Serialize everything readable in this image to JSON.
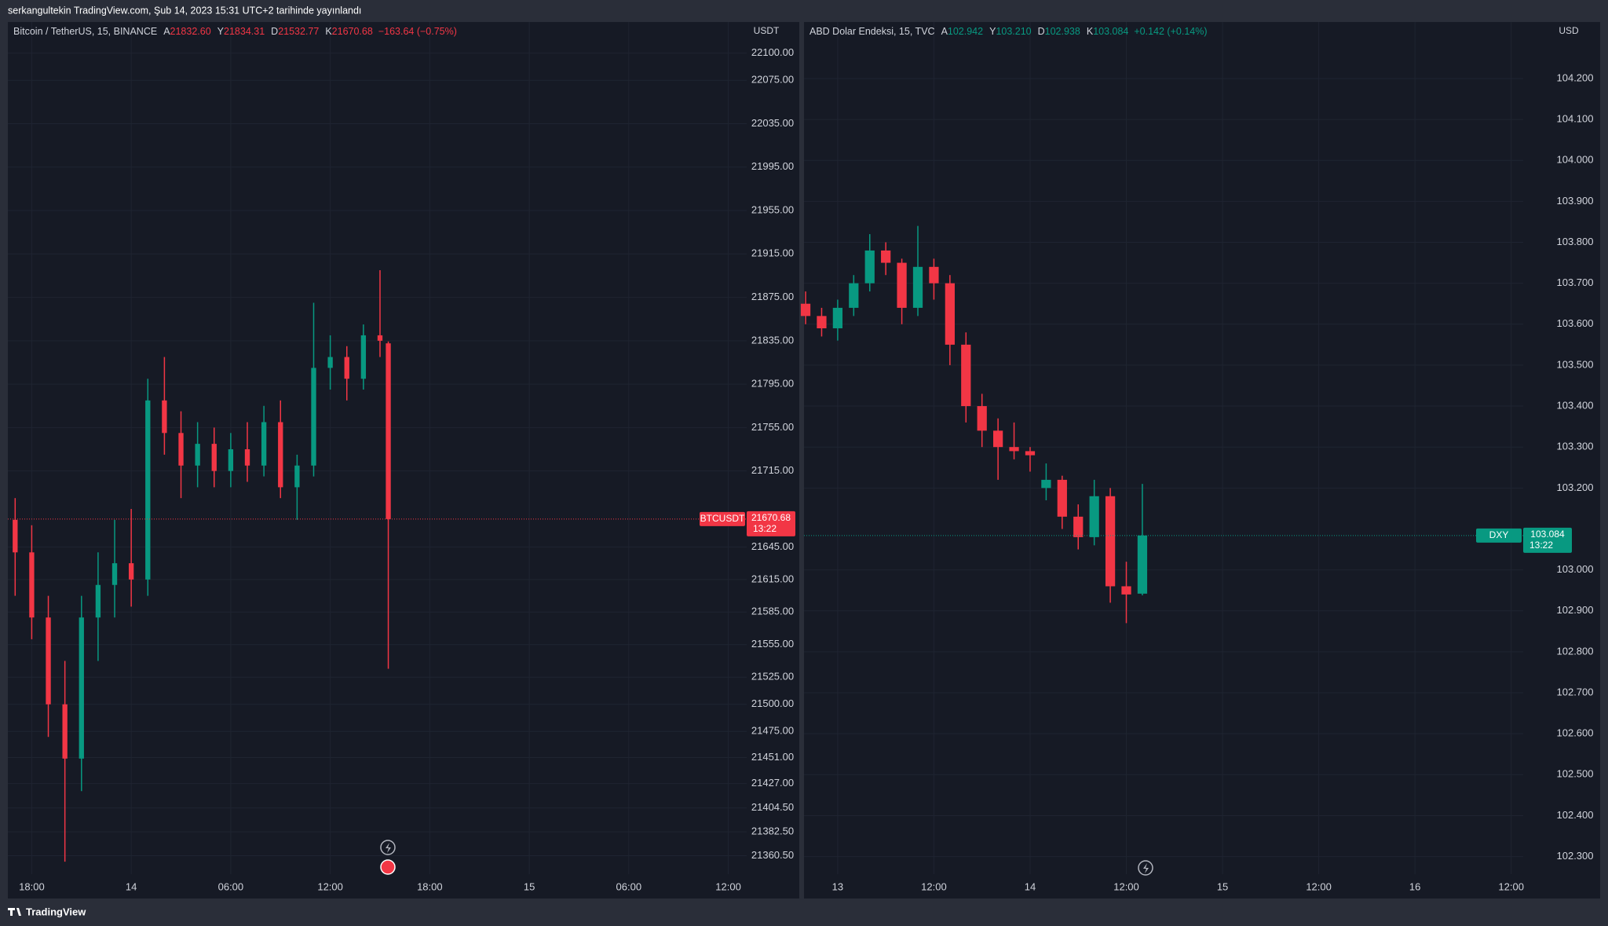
{
  "header": {
    "text": "serkangultekin TradingView.com, Şub 14, 2023 15:31 UTC+2 tarihinde yayınlandı"
  },
  "footer": {
    "brand": "TradingView"
  },
  "chart_data": [
    {
      "type": "candlestick",
      "title": "Bitcoin / TetherUS, 15, BINANCE",
      "ohlc_header": [
        {
          "key": "A",
          "value": "21832.60"
        },
        {
          "key": "Y",
          "value": "21834.31"
        },
        {
          "key": "D",
          "value": "21532.77"
        },
        {
          "key": "K",
          "value": "21670.68"
        }
      ],
      "change": "−163.64 (−0.75%)",
      "currency": "USDT",
      "price_tag": {
        "symbol": "BTCUSDT",
        "price": "21670.68",
        "countdown": "13:22"
      },
      "up_color": "#089981",
      "down_color": "#f23645",
      "grid": true,
      "xlim": [
        -1.44,
        43.11
      ],
      "xticks": [
        {
          "value": 0,
          "label": "18:00"
        },
        {
          "value": 6,
          "label": "14"
        },
        {
          "value": 12,
          "label": "06:00"
        },
        {
          "value": 18,
          "label": "12:00"
        },
        {
          "value": 24,
          "label": "18:00"
        },
        {
          "value": 30,
          "label": "15"
        },
        {
          "value": 36,
          "label": "06:00"
        },
        {
          "value": 42,
          "label": "12:00"
        }
      ],
      "ylim": [
        21343.5,
        22128.7
      ],
      "yticks": [
        {
          "value": 22100,
          "label": "22100.00"
        },
        {
          "value": 22075,
          "label": "22075.00"
        },
        {
          "value": 22035,
          "label": "22035.00"
        },
        {
          "value": 21995,
          "label": "21995.00"
        },
        {
          "value": 21955,
          "label": "21955.00"
        },
        {
          "value": 21915,
          "label": "21915.00"
        },
        {
          "value": 21875,
          "label": "21875.00"
        },
        {
          "value": 21835,
          "label": "21835.00"
        },
        {
          "value": 21795,
          "label": "21795.00"
        },
        {
          "value": 21755,
          "label": "21755.00"
        },
        {
          "value": 21715,
          "label": "21715.00"
        },
        {
          "value": 21645,
          "label": "21645.00"
        },
        {
          "value": 21615,
          "label": "21615.00"
        },
        {
          "value": 21585,
          "label": "21585.00"
        },
        {
          "value": 21555,
          "label": "21555.00"
        },
        {
          "value": 21525,
          "label": "21525.00"
        },
        {
          "value": 21500,
          "label": "21500.00"
        },
        {
          "value": 21475,
          "label": "21475.00"
        },
        {
          "value": 21451,
          "label": "21451.00"
        },
        {
          "value": 21427,
          "label": "21427.00"
        },
        {
          "value": 21404.5,
          "label": "21404.50"
        },
        {
          "value": 21382.5,
          "label": "21382.50"
        },
        {
          "value": 21360.5,
          "label": "21360.50"
        }
      ],
      "series": [
        {
          "name": "BTCUSDT",
          "x": [
            -1,
            0,
            1,
            2,
            3,
            4,
            5,
            6,
            7,
            8,
            9,
            10,
            11,
            12,
            13,
            14,
            15,
            16,
            17,
            18,
            19,
            20,
            21,
            21.5
          ],
          "open": [
            21670,
            21640,
            21580,
            21500,
            21450,
            21580,
            21610,
            21630,
            21615,
            21780,
            21750,
            21720,
            21740,
            21715,
            21735,
            21720,
            21760,
            21700,
            21720,
            21810,
            21820,
            21800,
            21840,
            21832.6
          ],
          "high": [
            21690,
            21665,
            21600,
            21540,
            21600,
            21640,
            21670,
            21680,
            21800,
            21820,
            21770,
            21760,
            21755,
            21750,
            21760,
            21775,
            21780,
            21730,
            21870,
            21840,
            21830,
            21850,
            21900,
            21834.31
          ],
          "low": [
            21600,
            21560,
            21470,
            21355,
            21420,
            21540,
            21580,
            21590,
            21600,
            21730,
            21690,
            21700,
            21700,
            21700,
            21705,
            21710,
            21690,
            21670,
            21710,
            21790,
            21780,
            21790,
            21820,
            21532.77
          ],
          "close": [
            21640,
            21580,
            21500,
            21450,
            21580,
            21610,
            21630,
            21615,
            21780,
            21750,
            21720,
            21740,
            21715,
            21735,
            21720,
            21760,
            21700,
            21720,
            21810,
            21820,
            21800,
            21840,
            21835,
            21670.68
          ]
        }
      ]
    },
    {
      "type": "candlestick",
      "title": "ABD Dolar Endeksi, 15, TVC",
      "ohlc_header": [
        {
          "key": "A",
          "value": "102.942"
        },
        {
          "key": "Y",
          "value": "103.210"
        },
        {
          "key": "D",
          "value": "102.938"
        },
        {
          "key": "K",
          "value": "103.084"
        }
      ],
      "change": "+0.142 (+0.14%)",
      "currency": "USD",
      "price_tag": {
        "symbol": "DXY",
        "price": "103.084",
        "countdown": "13:22"
      },
      "up_color": "#089981",
      "down_color": "#f23645",
      "grid": true,
      "xlim": [
        -4.2,
        85.5
      ],
      "xticks": [
        {
          "value": 0,
          "label": "13"
        },
        {
          "value": 12,
          "label": "12:00"
        },
        {
          "value": 24,
          "label": "14"
        },
        {
          "value": 36,
          "label": "12:00"
        },
        {
          "value": 48,
          "label": "15"
        },
        {
          "value": 60,
          "label": "12:00"
        },
        {
          "value": 72,
          "label": "16"
        },
        {
          "value": 84,
          "label": "12:00"
        }
      ],
      "ylim": [
        102.257,
        104.338
      ],
      "yticks": [
        {
          "value": 104.2,
          "label": "104.200"
        },
        {
          "value": 104.1,
          "label": "104.100"
        },
        {
          "value": 104.0,
          "label": "104.000"
        },
        {
          "value": 103.9,
          "label": "103.900"
        },
        {
          "value": 103.8,
          "label": "103.800"
        },
        {
          "value": 103.7,
          "label": "103.700"
        },
        {
          "value": 103.6,
          "label": "103.600"
        },
        {
          "value": 103.5,
          "label": "103.500"
        },
        {
          "value": 103.4,
          "label": "103.400"
        },
        {
          "value": 103.3,
          "label": "103.300"
        },
        {
          "value": 103.2,
          "label": "103.200"
        },
        {
          "value": 103.0,
          "label": "103.000"
        },
        {
          "value": 102.9,
          "label": "102.900"
        },
        {
          "value": 102.8,
          "label": "102.800"
        },
        {
          "value": 102.7,
          "label": "102.700"
        },
        {
          "value": 102.6,
          "label": "102.600"
        },
        {
          "value": 102.5,
          "label": "102.500"
        },
        {
          "value": 102.4,
          "label": "102.400"
        },
        {
          "value": 102.3,
          "label": "102.300"
        }
      ],
      "series": [
        {
          "name": "DXY",
          "x": [
            -4,
            -2,
            0,
            2,
            4,
            6,
            8,
            10,
            12,
            14,
            16,
            18,
            20,
            22,
            24,
            26,
            28,
            30,
            32,
            34,
            36,
            38
          ],
          "open": [
            103.65,
            103.62,
            103.59,
            103.64,
            103.7,
            103.78,
            103.75,
            103.64,
            103.74,
            103.7,
            103.55,
            103.4,
            103.34,
            103.3,
            103.29,
            103.2,
            103.22,
            103.13,
            103.08,
            103.18,
            102.96,
            102.942
          ],
          "high": [
            103.68,
            103.64,
            103.66,
            103.72,
            103.82,
            103.8,
            103.76,
            103.84,
            103.76,
            103.72,
            103.58,
            103.43,
            103.37,
            103.36,
            103.3,
            103.26,
            103.23,
            103.16,
            103.22,
            103.2,
            103.02,
            103.21
          ],
          "low": [
            103.6,
            103.57,
            103.56,
            103.62,
            103.68,
            103.72,
            103.6,
            103.62,
            103.66,
            103.5,
            103.36,
            103.3,
            103.22,
            103.27,
            103.24,
            103.17,
            103.1,
            103.05,
            103.06,
            102.92,
            102.87,
            102.938
          ],
          "close": [
            103.62,
            103.59,
            103.64,
            103.7,
            103.78,
            103.75,
            103.64,
            103.74,
            103.7,
            103.55,
            103.4,
            103.34,
            103.3,
            103.29,
            103.28,
            103.22,
            103.13,
            103.08,
            103.18,
            102.96,
            102.94,
            103.084
          ]
        }
      ]
    }
  ]
}
